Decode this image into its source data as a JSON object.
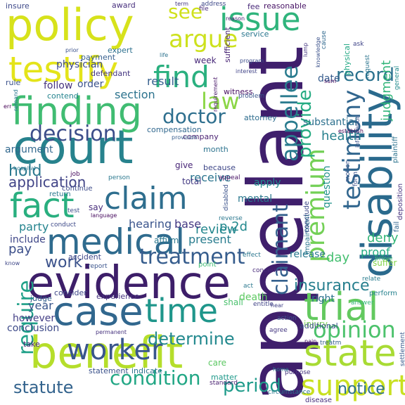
{
  "words": [
    {
      "text": "appellant",
      "color": "#3f1f6c"
    },
    {
      "text": "disability",
      "color": "#2a6a8d"
    },
    {
      "text": "court",
      "color": "#27828d"
    },
    {
      "text": "policy",
      "color": "#d7e21b"
    },
    {
      "text": "evidence",
      "color": "#3d1e69"
    },
    {
      "text": "benefit",
      "color": "#b5de2b"
    },
    {
      "text": "finding",
      "color": "#40bc72"
    },
    {
      "text": "medical",
      "color": "#2f6b8e"
    },
    {
      "text": "issue",
      "color": "#2fb47c"
    },
    {
      "text": "testify",
      "color": "#e4e41a"
    },
    {
      "text": "case",
      "color": "#31678e"
    },
    {
      "text": "claim",
      "color": "#2e6e8e"
    },
    {
      "text": "fact",
      "color": "#29af7f"
    },
    {
      "text": "trial",
      "color": "#63c95f"
    },
    {
      "text": "state",
      "color": "#a8db34"
    },
    {
      "text": "appellee",
      "color": "#297b8e"
    },
    {
      "text": "premium",
      "color": "#73d056"
    },
    {
      "text": "testimony",
      "color": "#31668e"
    },
    {
      "text": "support",
      "color": "#c8e020"
    },
    {
      "text": "worker",
      "color": "#39568c"
    },
    {
      "text": "time",
      "color": "#1f968b"
    },
    {
      "text": "find",
      "color": "#2ab07f"
    },
    {
      "text": "claimant",
      "color": "#34608d"
    },
    {
      "text": "decision",
      "color": "#3d4e8a"
    },
    {
      "text": "opinion",
      "color": "#4cc26c"
    },
    {
      "text": "condition",
      "color": "#22a785"
    },
    {
      "text": "argue",
      "color": "#cde11d"
    },
    {
      "text": "treatment",
      "color": "#365d8d"
    },
    {
      "text": "record",
      "color": "#2c728e"
    },
    {
      "text": "require",
      "color": "#1fa088"
    },
    {
      "text": "see",
      "color": "#d0e11c"
    },
    {
      "text": "statute",
      "color": "#33638d"
    },
    {
      "text": "determine",
      "color": "#23898e"
    },
    {
      "text": "law",
      "color": "#8bd646"
    },
    {
      "text": "provide",
      "color": "#25ab82"
    },
    {
      "text": "doctor",
      "color": "#2e6f8e"
    },
    {
      "text": "insurance",
      "color": "#277f8e"
    },
    {
      "text": "period",
      "color": "#1e9b8a"
    },
    {
      "text": "hold",
      "color": "#2a788e"
    },
    {
      "text": "judgment",
      "color": "#32b67a"
    },
    {
      "text": "work",
      "color": "#3b528b"
    },
    {
      "text": "review",
      "color": "#24878e"
    },
    {
      "text": "application",
      "color": "#414487"
    },
    {
      "text": "notice",
      "color": "#2d718e"
    },
    {
      "text": "hearing",
      "color": "#3a548c"
    },
    {
      "text": "base",
      "color": "#443983"
    },
    {
      "text": "p.2d",
      "color": "#23898e"
    },
    {
      "text": "substantial",
      "color": "#2d708e"
    },
    {
      "text": "health",
      "color": "#27818e"
    },
    {
      "text": "party",
      "color": "#25848e"
    },
    {
      "text": "physician",
      "color": "#3e4c8a"
    },
    {
      "text": "section",
      "color": "#2c738e"
    },
    {
      "text": "receive",
      "color": "#2b748e"
    },
    {
      "text": "pay",
      "color": "#3c4f8a"
    },
    {
      "text": "year",
      "color": "#39568c"
    },
    {
      "text": "result",
      "color": "#355f8d"
    },
    {
      "text": "follow",
      "color": "#46337e"
    },
    {
      "text": "order",
      "color": "#3b528b"
    },
    {
      "text": "present",
      "color": "#287c8e"
    },
    {
      "text": "apply",
      "color": "#228c8d"
    },
    {
      "text": "deny",
      "color": "#35b779"
    },
    {
      "text": "mental",
      "color": "#2a788e"
    },
    {
      "text": "release",
      "color": "#29798e"
    },
    {
      "text": "day",
      "color": "#44bf70"
    },
    {
      "text": "proof",
      "color": "#25ac82"
    },
    {
      "text": "argument",
      "color": "#31688e"
    },
    {
      "text": "conclusion",
      "color": "#3e4a89"
    },
    {
      "text": "however",
      "color": "#433e85"
    },
    {
      "text": "include",
      "color": "#3f4788"
    },
    {
      "text": "question",
      "color": "#21918c"
    },
    {
      "text": "right",
      "color": "#2c728e"
    },
    {
      "text": "week",
      "color": "#482979"
    },
    {
      "text": "date",
      "color": "#365c8d"
    },
    {
      "text": "affirm",
      "color": "#2a778e"
    },
    {
      "text": "total",
      "color": "#443a83"
    },
    {
      "text": "give",
      "color": "#482677"
    },
    {
      "text": "say",
      "color": "#472d7b"
    },
    {
      "text": "injury",
      "color": "#7ad151"
    },
    {
      "text": "judge",
      "color": "#34618d"
    },
    {
      "text": "consider",
      "color": "#3f4889"
    },
    {
      "text": "experience",
      "color": "#46327e"
    },
    {
      "text": "shall",
      "color": "#4ac16d"
    },
    {
      "text": "death",
      "color": "#5ec962"
    },
    {
      "text": "additional",
      "color": "#3c508b"
    },
    {
      "text": "care",
      "color": "#5cc863"
    },
    {
      "text": "compensation",
      "color": "#31688e"
    },
    {
      "text": "company",
      "color": "#481f70"
    },
    {
      "text": "attorney",
      "color": "#2e6d8e"
    },
    {
      "text": "witness",
      "color": "#471063"
    },
    {
      "text": "health2",
      "color": "#27818e"
    },
    {
      "text": "award",
      "color": "#472f7d"
    },
    {
      "text": "insure",
      "color": "#3e4989"
    },
    {
      "text": "payment",
      "color": "#355e8d"
    },
    {
      "text": "expert",
      "color": "#2d708e"
    },
    {
      "text": "defendant",
      "color": "#453781"
    },
    {
      "text": "sufficient",
      "color": "#482374"
    },
    {
      "text": "service",
      "color": "#2a768e"
    },
    {
      "text": "fee",
      "color": "#482979"
    },
    {
      "text": "reasonable",
      "color": "#471365"
    },
    {
      "text": "rule",
      "color": "#3b528b"
    },
    {
      "text": "contend",
      "color": "#25848e"
    },
    {
      "text": "month",
      "color": "#2c738e"
    },
    {
      "text": "because",
      "color": "#3f4788"
    },
    {
      "text": "take",
      "color": "#482576"
    },
    {
      "text": "statement",
      "color": "#3b528b"
    },
    {
      "text": "indicate",
      "color": "#2c738e"
    },
    {
      "text": "standard",
      "color": "#481f70"
    },
    {
      "text": "matter",
      "color": "#1f998a"
    },
    {
      "text": "circumstance",
      "color": "#2b758e"
    },
    {
      "text": "purpose",
      "color": "#46327e"
    },
    {
      "text": "disease",
      "color": "#472f7d"
    },
    {
      "text": "motion",
      "color": "#39568c"
    },
    {
      "text": "form",
      "color": "#3b528b"
    },
    {
      "text": "cause",
      "color": "#30698e"
    },
    {
      "text": "physical",
      "color": "#22a884"
    },
    {
      "text": "ask",
      "color": "#404588"
    },
    {
      "text": "request",
      "color": "#2b748e"
    },
    {
      "text": "general",
      "color": "#228c8d"
    },
    {
      "text": "plaintiff",
      "color": "#2c738e"
    },
    {
      "text": "deposition",
      "color": "#46327e"
    },
    {
      "text": "fail",
      "color": "#31668e"
    },
    {
      "text": "relate",
      "color": "#287c8e"
    },
    {
      "text": "suffer",
      "color": "#84d44b"
    },
    {
      "text": "prove",
      "color": "#3fbc73"
    },
    {
      "text": "perform",
      "color": "#26828e"
    },
    {
      "text": "answer",
      "color": "#35b779"
    },
    {
      "text": "settlement",
      "color": "#37598c"
    },
    {
      "text": "impairment",
      "color": "#2a768e"
    },
    {
      "text": "conclude",
      "color": "#3e4989"
    },
    {
      "text": "entitle",
      "color": "#414487"
    },
    {
      "text": "action",
      "color": "#3b528b"
    },
    {
      "text": "agree",
      "color": "#453882"
    },
    {
      "text": "treatm",
      "color": "#34618d"
    },
    {
      "text": "pain",
      "color": "#471365"
    },
    {
      "text": "hear",
      "color": "#414287"
    },
    {
      "text": "act",
      "color": "#2a788e"
    },
    {
      "text": "concern",
      "color": "#472a7a"
    },
    {
      "text": "point",
      "color": "#3fbc73"
    },
    {
      "text": "effect",
      "color": "#2a768e"
    },
    {
      "text": "accident",
      "color": "#3f4889"
    },
    {
      "text": "report",
      "color": "#3a548c"
    },
    {
      "text": "continue",
      "color": "#3e4c8a"
    },
    {
      "text": "return",
      "color": "#2a788e"
    },
    {
      "text": "test",
      "color": "#3d4e8a"
    },
    {
      "text": "language",
      "color": "#460b5e"
    },
    {
      "text": "conduct",
      "color": "#3e4a89"
    },
    {
      "text": "know",
      "color": "#3f4788"
    },
    {
      "text": "disabled",
      "color": "#3b528b"
    },
    {
      "text": "reverse",
      "color": "#2a778e"
    },
    {
      "text": "appeal",
      "color": "#471164"
    },
    {
      "text": "person",
      "color": "#2a788e"
    },
    {
      "text": "job",
      "color": "#460a5d"
    },
    {
      "text": "hospital",
      "color": "#2a778e"
    },
    {
      "text": "err",
      "color": "#440154"
    },
    {
      "text": "remand",
      "color": "#2a778e"
    },
    {
      "text": "provision",
      "color": "#365d8d"
    },
    {
      "text": "problem",
      "color": "#39568c"
    },
    {
      "text": "requirement",
      "color": "#481769"
    },
    {
      "text": "interest",
      "color": "#414487"
    },
    {
      "text": "program",
      "color": "#3d4e8a"
    },
    {
      "text": "lump",
      "color": "#453781"
    },
    {
      "text": "knowledge",
      "color": "#3b528b"
    },
    {
      "text": "establish",
      "color": "#440154"
    },
    {
      "text": "sum",
      "color": "#460b5e"
    },
    {
      "text": "information",
      "color": "#3b528b"
    },
    {
      "text": "permanent",
      "color": "#46327e"
    },
    {
      "text": "file",
      "color": "#472d7b"
    },
    {
      "text": "address",
      "color": "#3e4989"
    },
    {
      "text": "reason",
      "color": "#482374"
    },
    {
      "text": "term",
      "color": "#453882"
    },
    {
      "text": "prior",
      "color": "#3b528b"
    },
    {
      "text": "life",
      "color": "#2c728e"
    },
    {
      "text": "home",
      "color": "#2a788e"
    }
  ]
}
